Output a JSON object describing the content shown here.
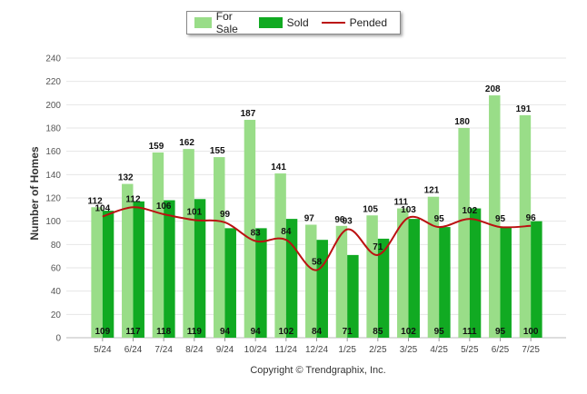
{
  "chart_data": {
    "type": "bar",
    "ylabel": "Number of Homes",
    "ylim": [
      0,
      240
    ],
    "yticks": [
      0,
      20,
      40,
      60,
      80,
      100,
      120,
      140,
      160,
      180,
      200,
      220,
      240
    ],
    "grid": true,
    "legend_position": "top-center",
    "categories": [
      "5/24",
      "6/24",
      "7/24",
      "8/24",
      "9/24",
      "10/24",
      "11/24",
      "12/24",
      "1/25",
      "2/25",
      "3/25",
      "4/25",
      "5/25",
      "6/25",
      "7/25"
    ],
    "series": [
      {
        "name": "For Sale",
        "kind": "bar",
        "color": "#99dd88",
        "values": [
          112,
          132,
          159,
          162,
          155,
          187,
          141,
          97,
          96,
          105,
          111,
          121,
          180,
          208,
          191
        ]
      },
      {
        "name": "Sold",
        "kind": "bar",
        "color": "#11aa22",
        "values": [
          109,
          117,
          118,
          119,
          94,
          94,
          102,
          84,
          71,
          85,
          102,
          95,
          111,
          95,
          100
        ]
      },
      {
        "name": "Pended",
        "kind": "line",
        "color": "#bb1111",
        "values": [
          104,
          112,
          106,
          101,
          99,
          83,
          84,
          58,
          93,
          71,
          103,
          95,
          102,
          95,
          96
        ]
      }
    ]
  },
  "copyright": "Copyright © Trendgraphix, Inc."
}
